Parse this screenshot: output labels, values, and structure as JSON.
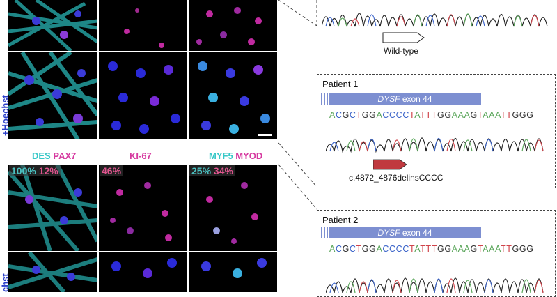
{
  "side_labels": {
    "top": "+Hoechst",
    "bottom": "chst"
  },
  "stains": {
    "col1": [
      {
        "text": "DES",
        "color": "#35c7c7"
      },
      {
        "text": "PAX7",
        "color": "#d63aa0"
      }
    ],
    "col2": [
      {
        "text": "KI-67",
        "color": "#d63aa0"
      }
    ],
    "col3": [
      {
        "text": "MYF5",
        "color": "#35c7c7"
      },
      {
        "text": "MYOD",
        "color": "#d63aa0"
      }
    ]
  },
  "percentages": {
    "col1": [
      {
        "text": "100%",
        "color": "#4bc3c3"
      },
      {
        "text": "12%",
        "color": "#e0558f"
      }
    ],
    "col2": [
      {
        "text": "46%",
        "color": "#e0558f"
      }
    ],
    "col3": [
      {
        "text": "25%",
        "color": "#4bc3c3"
      },
      {
        "text": "34%",
        "color": "#e0558f"
      }
    ]
  },
  "wild_type": {
    "label": "Wild-type"
  },
  "patients": [
    {
      "title": "Patient 1",
      "gene": "DYSF",
      "exon": "exon 44",
      "sequence": "ACGCTGGACCCCTATTTGGAAAGTAAATTGGG",
      "mutation": "c.4872_4876delinsCCCC"
    },
    {
      "title": "Patient 2",
      "gene": "DYSF",
      "exon": "exon 44",
      "sequence": "ACGCTGGACCCCTATTTGGAAAGTAAATTGGG"
    }
  ],
  "colors": {
    "exon": "#7d8fd1",
    "mutation_arrow": "#c0393f",
    "hoechst": "#2b3fc9"
  }
}
